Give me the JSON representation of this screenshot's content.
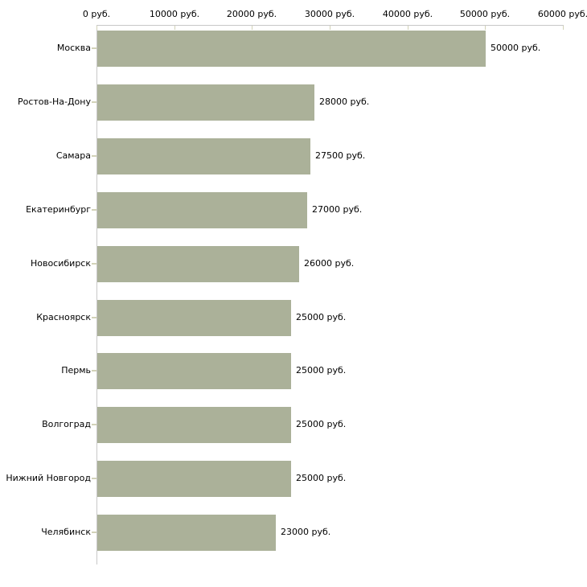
{
  "chart_data": {
    "type": "bar",
    "orientation": "horizontal",
    "unit": "руб.",
    "grid": false,
    "legend": false,
    "x_axis": {
      "position": "top",
      "min": 0,
      "max": 60000,
      "tick_step": 10000,
      "tick_labels": [
        "0 руб.",
        "10000 руб.",
        "20000 руб.",
        "30000 руб.",
        "40000 руб.",
        "50000 руб.",
        "60000 руб."
      ]
    },
    "categories": [
      "Москва",
      "Ростов-На-Дону",
      "Самара",
      "Екатеринбург",
      "Новосибирск",
      "Красноярск",
      "Пермь",
      "Волгоград",
      "Нижний Новгород",
      "Челябинск"
    ],
    "values": [
      50000,
      28000,
      27500,
      27000,
      26000,
      25000,
      25000,
      25000,
      25000,
      23000
    ],
    "value_labels": [
      "50000 руб.",
      "28000 руб.",
      "27500 руб.",
      "27000 руб.",
      "26000 руб.",
      "25000 руб.",
      "25000 руб.",
      "25000 руб.",
      "25000 руб.",
      "23000 руб."
    ],
    "colors": {
      "bar": "#abb199",
      "axis_line": "#c8c8c8",
      "tick_mark": "#d2d2b8",
      "text": "#000000",
      "background": "#ffffff"
    }
  }
}
